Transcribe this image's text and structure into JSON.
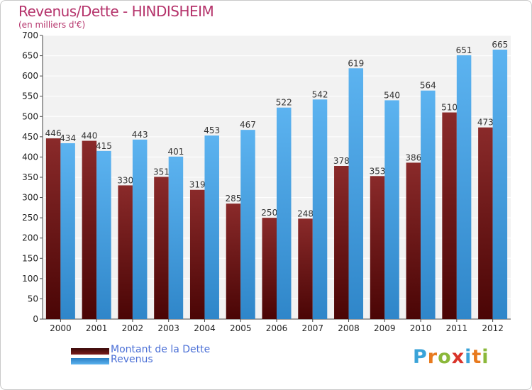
{
  "chart_data": {
    "type": "bar",
    "title": "Revenus/Dette - HINDISHEIM",
    "subtitle": "(en milliers d'€)",
    "categories": [
      "2000",
      "2001",
      "2002",
      "2003",
      "2004",
      "2005",
      "2006",
      "2007",
      "2008",
      "2009",
      "2010",
      "2011",
      "2012"
    ],
    "series": [
      {
        "name": "Montant de la Dette",
        "color": "#6e1414",
        "values": [
          446,
          440,
          330,
          351,
          319,
          285,
          250,
          248,
          378,
          353,
          386,
          510,
          473
        ]
      },
      {
        "name": "Revenus",
        "color": "#4ea6e6",
        "values": [
          434,
          415,
          443,
          401,
          453,
          467,
          522,
          542,
          619,
          540,
          564,
          651,
          665
        ]
      }
    ],
    "ylim": [
      0,
      700
    ],
    "yticks": [
      0,
      50,
      100,
      150,
      200,
      250,
      300,
      350,
      400,
      450,
      500,
      550,
      600,
      650,
      700
    ],
    "grid": true,
    "legend": "bottom-left"
  },
  "logo": {
    "letters": [
      {
        "ch": "P",
        "color": "#3aa3d8"
      },
      {
        "ch": "r",
        "color": "#e87a1e"
      },
      {
        "ch": "o",
        "color": "#8bb83a"
      },
      {
        "ch": "x",
        "color": "#d9342a"
      },
      {
        "ch": "i",
        "color": "#3aa3d8"
      },
      {
        "ch": "t",
        "color": "#e87a1e"
      },
      {
        "ch": "i",
        "color": "#8bb83a"
      }
    ]
  }
}
